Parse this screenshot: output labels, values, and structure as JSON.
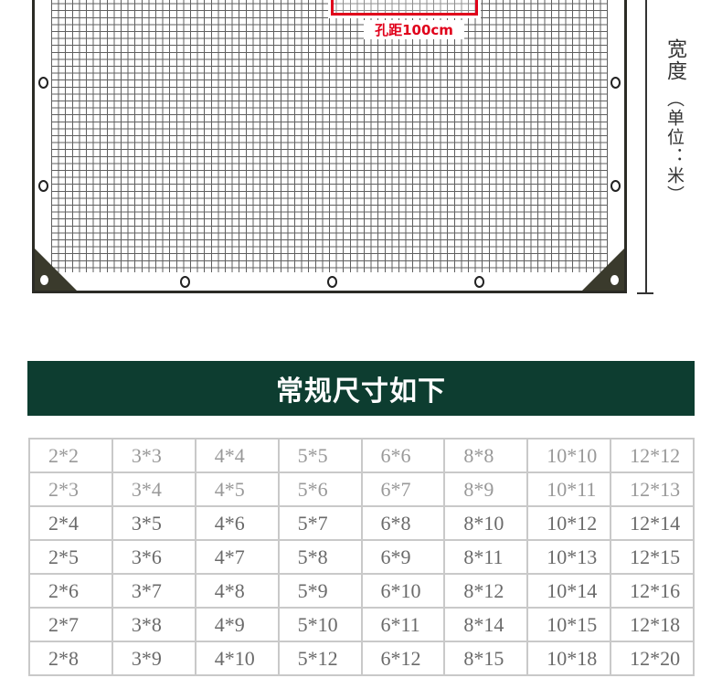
{
  "diagram": {
    "hole_spacing_label": "孔距100cm",
    "width_label": "宽度",
    "unit_label": "（单位：米）",
    "colors": {
      "accent_red": "#e0001b",
      "corner": "#3a3a2c"
    }
  },
  "banner": {
    "title": "常规尺寸如下",
    "color": "#0d3d30"
  },
  "sizes": [
    [
      "2*2",
      "3*3",
      "4*4",
      "5*5",
      "6*6",
      "8*8",
      "10*10",
      "12*12"
    ],
    [
      "2*3",
      "3*4",
      "4*5",
      "5*6",
      "6*7",
      "8*9",
      "10*11",
      "12*13"
    ],
    [
      "2*4",
      "3*5",
      "4*6",
      "5*7",
      "6*8",
      "8*10",
      "10*12",
      "12*14"
    ],
    [
      "2*5",
      "3*6",
      "4*7",
      "5*8",
      "6*9",
      "8*11",
      "10*13",
      "12*15"
    ],
    [
      "2*6",
      "3*7",
      "4*8",
      "5*9",
      "6*10",
      "8*12",
      "10*14",
      "12*16"
    ],
    [
      "2*7",
      "3*8",
      "4*9",
      "5*10",
      "6*11",
      "8*14",
      "10*15",
      "12*18"
    ],
    [
      "2*8",
      "3*9",
      "4*10",
      "5*12",
      "6*12",
      "8*15",
      "10*18",
      "12*20"
    ]
  ]
}
